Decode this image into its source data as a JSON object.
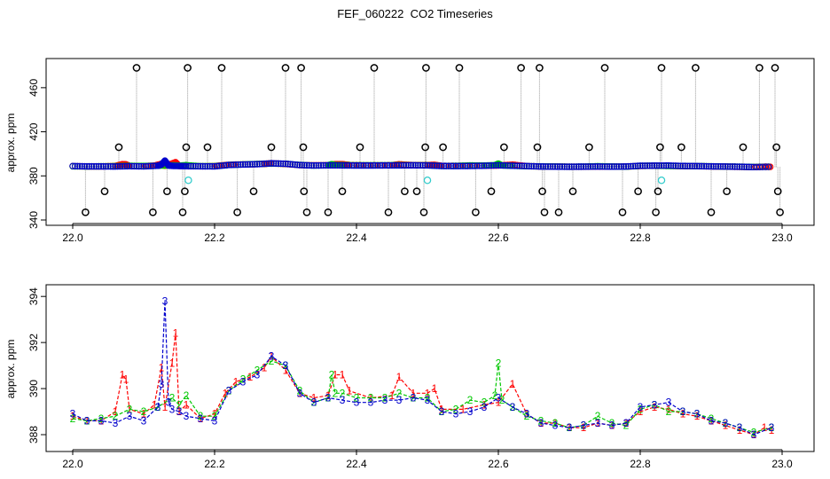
{
  "title": "FEF_060222  CO2 Timeseries",
  "colors": {
    "s1": "#ff0000",
    "s2": "#00c800",
    "s3": "#0000cc",
    "flag": "#000000",
    "cyan": "#33cccc",
    "spike": "#999999"
  },
  "chart_data": [
    {
      "type": "scatter",
      "ylabel": "approx. ppm",
      "xlim": [
        22.0,
        23.0
      ],
      "ylim": [
        340,
        480
      ],
      "xticks": [
        "22.0",
        "22.2",
        "22.4",
        "22.6",
        "22.8",
        "23.0"
      ],
      "yticks": [
        "340",
        "380",
        "420",
        "460"
      ],
      "flagged_points": [
        {
          "x": 22.018,
          "y": 347
        },
        {
          "x": 22.045,
          "y": 366
        },
        {
          "x": 22.065,
          "y": 406
        },
        {
          "x": 22.09,
          "y": 478
        },
        {
          "x": 22.113,
          "y": 347
        },
        {
          "x": 22.133,
          "y": 366
        },
        {
          "x": 22.155,
          "y": 347
        },
        {
          "x": 22.158,
          "y": 366
        },
        {
          "x": 22.16,
          "y": 406
        },
        {
          "x": 22.162,
          "y": 478
        },
        {
          "x": 22.19,
          "y": 406
        },
        {
          "x": 22.21,
          "y": 478
        },
        {
          "x": 22.232,
          "y": 347
        },
        {
          "x": 22.255,
          "y": 366
        },
        {
          "x": 22.28,
          "y": 406
        },
        {
          "x": 22.3,
          "y": 478
        },
        {
          "x": 22.322,
          "y": 478
        },
        {
          "x": 22.325,
          "y": 406
        },
        {
          "x": 22.326,
          "y": 366
        },
        {
          "x": 22.33,
          "y": 347
        },
        {
          "x": 22.36,
          "y": 347
        },
        {
          "x": 22.38,
          "y": 366
        },
        {
          "x": 22.405,
          "y": 406
        },
        {
          "x": 22.425,
          "y": 478
        },
        {
          "x": 22.445,
          "y": 347
        },
        {
          "x": 22.468,
          "y": 366
        },
        {
          "x": 22.485,
          "y": 366
        },
        {
          "x": 22.495,
          "y": 347
        },
        {
          "x": 22.497,
          "y": 406
        },
        {
          "x": 22.498,
          "y": 478
        },
        {
          "x": 22.522,
          "y": 406
        },
        {
          "x": 22.545,
          "y": 478
        },
        {
          "x": 22.568,
          "y": 347
        },
        {
          "x": 22.59,
          "y": 366
        },
        {
          "x": 22.608,
          "y": 406
        },
        {
          "x": 22.632,
          "y": 478
        },
        {
          "x": 22.655,
          "y": 406
        },
        {
          "x": 22.658,
          "y": 478
        },
        {
          "x": 22.662,
          "y": 366
        },
        {
          "x": 22.665,
          "y": 347
        },
        {
          "x": 22.685,
          "y": 347
        },
        {
          "x": 22.705,
          "y": 366
        },
        {
          "x": 22.728,
          "y": 406
        },
        {
          "x": 22.75,
          "y": 478
        },
        {
          "x": 22.775,
          "y": 347
        },
        {
          "x": 22.797,
          "y": 366
        },
        {
          "x": 22.822,
          "y": 347
        },
        {
          "x": 22.825,
          "y": 366
        },
        {
          "x": 22.828,
          "y": 406
        },
        {
          "x": 22.83,
          "y": 478
        },
        {
          "x": 22.858,
          "y": 406
        },
        {
          "x": 22.878,
          "y": 478
        },
        {
          "x": 22.9,
          "y": 347
        },
        {
          "x": 22.922,
          "y": 366
        },
        {
          "x": 22.945,
          "y": 406
        },
        {
          "x": 22.968,
          "y": 478
        },
        {
          "x": 22.99,
          "y": 478
        },
        {
          "x": 22.992,
          "y": 406
        },
        {
          "x": 22.994,
          "y": 366
        },
        {
          "x": 22.997,
          "y": 347
        }
      ],
      "cyan_points": [
        {
          "x": 22.163,
          "y": 376
        },
        {
          "x": 22.5,
          "y": 376
        },
        {
          "x": 22.83,
          "y": 376
        }
      ],
      "series_note": "main trace ≈ 388-390 ppm, same as lower panel"
    },
    {
      "type": "line",
      "ylabel": "approx. ppm",
      "xlim": [
        22.0,
        23.0
      ],
      "ylim": [
        387.5,
        394.2
      ],
      "xticks": [
        "22.0",
        "22.2",
        "22.4",
        "22.6",
        "22.8",
        "23.0"
      ],
      "yticks": [
        "388",
        "390",
        "392",
        "394"
      ],
      "series": [
        {
          "name": "1",
          "x": [
            22.0,
            22.02,
            22.04,
            22.06,
            22.07,
            22.075,
            22.08,
            22.1,
            22.115,
            22.125,
            22.13,
            22.14,
            22.145,
            22.15,
            22.16,
            22.18,
            22.2,
            22.215,
            22.23,
            22.25,
            22.27,
            22.28,
            22.3,
            22.32,
            22.34,
            22.36,
            22.37,
            22.38,
            22.39,
            22.42,
            22.45,
            22.46,
            22.48,
            22.5,
            22.51,
            22.52,
            22.55,
            22.58,
            22.6,
            22.62,
            22.64,
            22.66,
            22.68,
            22.7,
            22.72,
            22.74,
            22.76,
            22.78,
            22.8,
            22.82,
            22.84,
            22.86,
            22.88,
            22.9,
            22.92,
            22.94,
            22.96,
            22.975,
            22.985
          ],
          "y": [
            388.8,
            388.6,
            388.6,
            389.0,
            390.6,
            390.4,
            389.1,
            388.9,
            389.3,
            390.9,
            389.2,
            391.1,
            392.4,
            389.0,
            389.3,
            388.7,
            388.9,
            389.8,
            390.3,
            390.5,
            390.9,
            391.4,
            390.8,
            389.8,
            389.6,
            389.7,
            390.6,
            390.6,
            389.9,
            389.6,
            389.7,
            390.5,
            389.8,
            389.8,
            390.0,
            389.1,
            389.1,
            389.3,
            389.4,
            390.2,
            388.9,
            388.5,
            388.5,
            388.3,
            388.3,
            388.5,
            388.4,
            388.5,
            389.0,
            389.2,
            389.1,
            388.9,
            388.8,
            388.6,
            388.4,
            388.2,
            388.0,
            388.3,
            388.2
          ]
        },
        {
          "name": "2",
          "x": [
            22.0,
            22.02,
            22.04,
            22.06,
            22.08,
            22.1,
            22.12,
            22.14,
            22.15,
            22.16,
            22.18,
            22.2,
            22.22,
            22.24,
            22.26,
            22.28,
            22.3,
            22.32,
            22.34,
            22.36,
            22.365,
            22.37,
            22.38,
            22.4,
            22.42,
            22.44,
            22.46,
            22.48,
            22.5,
            22.52,
            22.54,
            22.56,
            22.58,
            22.595,
            22.6,
            22.605,
            22.62,
            22.64,
            22.66,
            22.68,
            22.7,
            22.72,
            22.74,
            22.76,
            22.78,
            22.8,
            22.82,
            22.84,
            22.86,
            22.88,
            22.9,
            22.92,
            22.94,
            22.96,
            22.985
          ],
          "y": [
            388.7,
            388.6,
            388.7,
            388.8,
            389.1,
            389.0,
            389.2,
            389.6,
            389.3,
            389.7,
            388.8,
            388.8,
            389.9,
            390.4,
            390.8,
            391.2,
            391.0,
            389.9,
            389.4,
            389.6,
            390.6,
            389.8,
            389.8,
            389.6,
            389.6,
            389.6,
            389.8,
            389.6,
            389.6,
            389.0,
            389.1,
            389.5,
            389.4,
            389.7,
            391.1,
            389.5,
            389.2,
            388.8,
            388.6,
            388.5,
            388.3,
            388.4,
            388.8,
            388.5,
            388.4,
            389.1,
            389.3,
            389.0,
            389.0,
            388.9,
            388.7,
            388.5,
            388.3,
            388.1,
            388.3
          ]
        },
        {
          "name": "3",
          "x": [
            22.0,
            22.02,
            22.04,
            22.06,
            22.08,
            22.1,
            22.12,
            22.125,
            22.13,
            22.135,
            22.14,
            22.15,
            22.16,
            22.18,
            22.2,
            22.22,
            22.24,
            22.26,
            22.28,
            22.3,
            22.32,
            22.34,
            22.36,
            22.38,
            22.4,
            22.42,
            22.44,
            22.46,
            22.48,
            22.5,
            22.52,
            22.54,
            22.56,
            22.58,
            22.6,
            22.62,
            22.64,
            22.66,
            22.68,
            22.7,
            22.72,
            22.74,
            22.76,
            22.78,
            22.8,
            22.82,
            22.84,
            22.86,
            22.88,
            22.9,
            22.92,
            22.94,
            22.96,
            22.985
          ],
          "y": [
            388.9,
            388.6,
            388.6,
            388.5,
            388.8,
            388.6,
            389.2,
            390.2,
            393.8,
            389.4,
            389.1,
            389.0,
            388.8,
            388.7,
            388.6,
            389.9,
            390.3,
            390.6,
            391.4,
            391.0,
            389.8,
            389.4,
            389.6,
            389.5,
            389.4,
            389.4,
            389.5,
            389.5,
            389.6,
            389.5,
            389.0,
            388.9,
            389.0,
            389.2,
            389.6,
            389.2,
            388.9,
            388.5,
            388.4,
            388.3,
            388.4,
            388.5,
            388.4,
            388.5,
            389.2,
            389.3,
            389.4,
            389.0,
            388.9,
            388.6,
            388.5,
            388.3,
            388.0,
            388.3
          ]
        }
      ]
    }
  ]
}
